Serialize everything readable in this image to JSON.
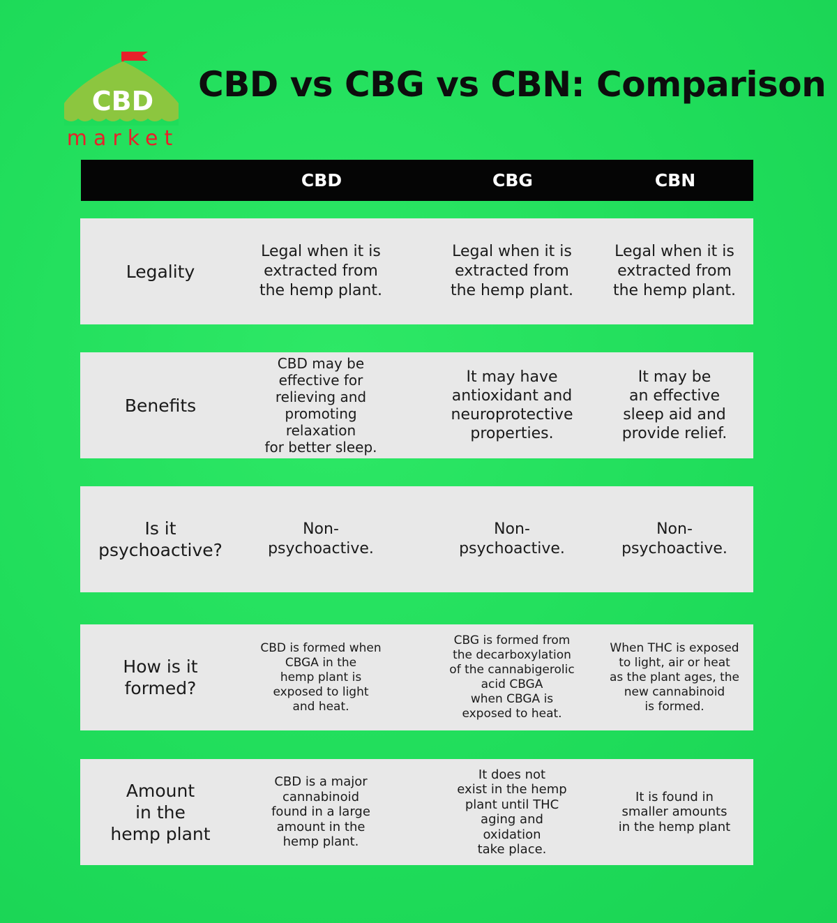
{
  "logo": {
    "brand": "CBD",
    "tagline": "market"
  },
  "header": {
    "title": "CBD vs CBG vs CBN: Comparison"
  },
  "table": {
    "columns": [
      "CBD",
      "CBG",
      "CBN"
    ],
    "rows": [
      {
        "label": "Legality",
        "cells": [
          "Legal when it is\nextracted from\nthe hemp plant.",
          "Legal when it is\nextracted from\nthe hemp plant.",
          "Legal when it is\nextracted from\nthe hemp plant."
        ]
      },
      {
        "label": "Benefits",
        "cells": [
          "CBD may be\neffective for\nrelieving and\npromoting\nrelaxation\nfor better sleep.",
          "It may have\nantioxidant and\nneuroprotective\nproperties.",
          "It may be\nan effective\nsleep aid and\nprovide relief."
        ]
      },
      {
        "label": "Is it\npsychoactive?",
        "cells": [
          "Non-\npsychoactive.",
          "Non-\npsychoactive.",
          "Non-\npsychoactive."
        ]
      },
      {
        "label": "How is it\nformed?",
        "cells": [
          "CBD is formed when\nCBGA in the\nhemp plant is\nexposed to light\nand heat.",
          "CBG is formed from\nthe decarboxylation\nof the cannabigerolic\nacid CBGA\nwhen CBGA is\nexposed to heat.",
          "When THC is exposed\nto light, air or heat\nas the plant ages, the\nnew cannabinoid\nis formed."
        ]
      },
      {
        "label": "Amount\nin the\nhemp plant",
        "cells": [
          "CBD is a major\ncannabinoid\nfound in a large\namount in the\nhemp plant.",
          "It does not\nexist in the hemp\nplant until THC\naging and\noxidation\ntake place.",
          "It is found in\nsmaller amounts\nin the hemp plant"
        ]
      }
    ]
  }
}
